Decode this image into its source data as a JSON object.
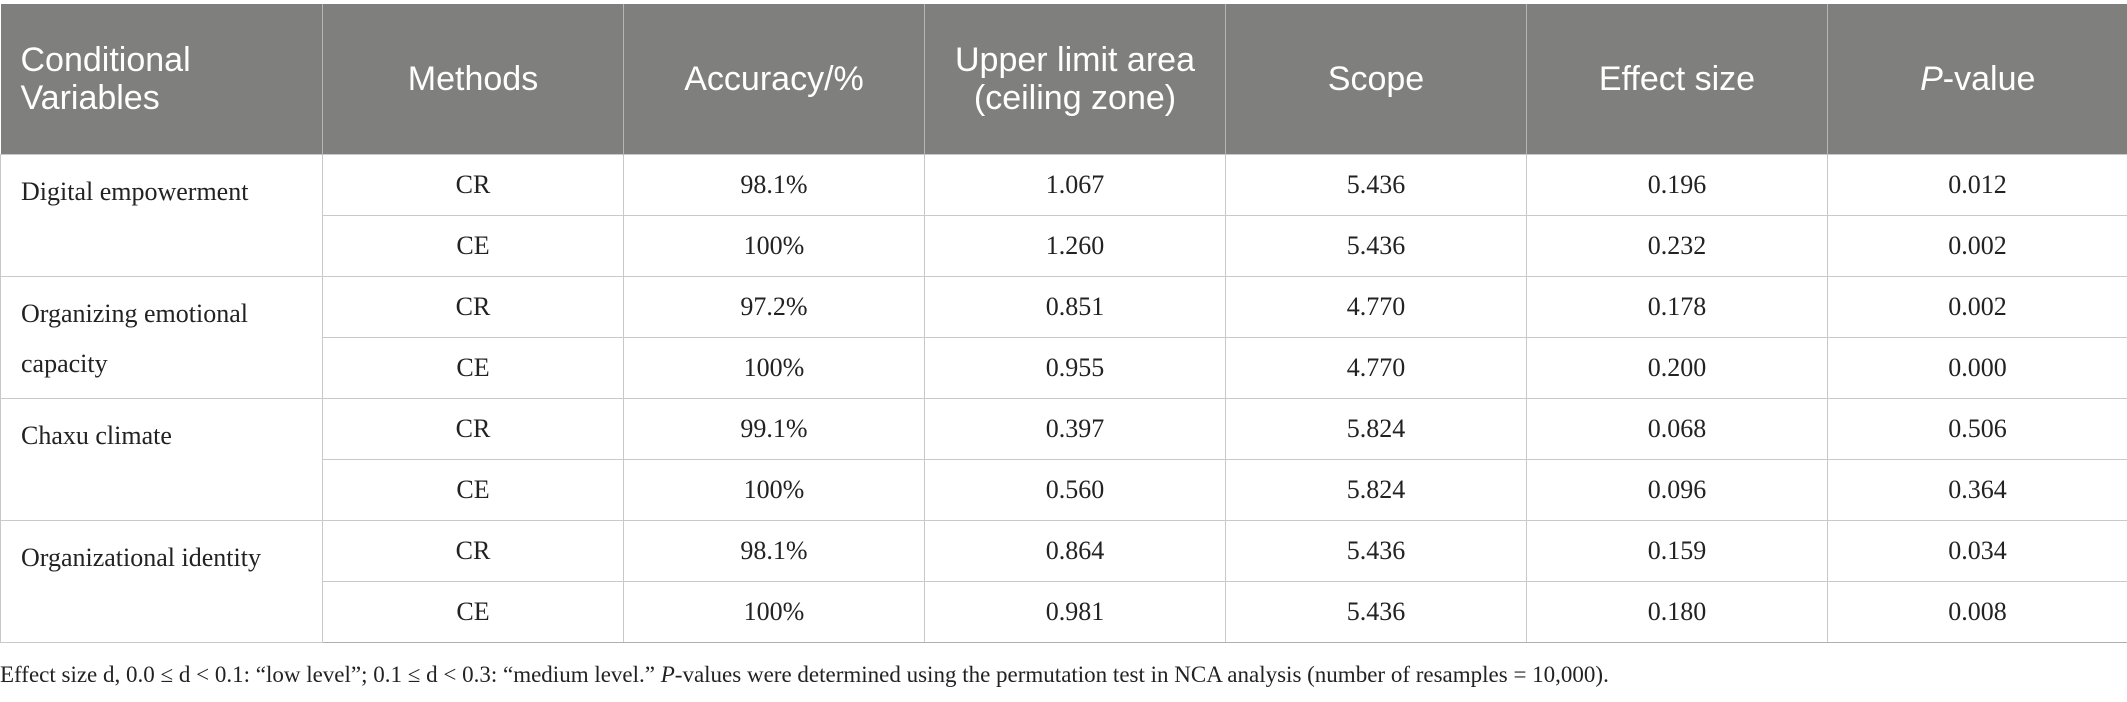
{
  "table": {
    "headers": {
      "variables": "Conditional Variables",
      "methods": "Methods",
      "accuracy": "Accuracy/%",
      "ceiling": "Upper limit area (ceiling zone)",
      "scope": "Scope",
      "effect": "Effect size",
      "p_prefix": "P",
      "p_suffix": "-value"
    },
    "groups": [
      {
        "variable": "Digital empowerment",
        "rows": [
          {
            "method": "CR",
            "accuracy": "98.1%",
            "ceiling": "1.067",
            "scope": "5.436",
            "effect": "0.196",
            "p": "0.012"
          },
          {
            "method": "CE",
            "accuracy": "100%",
            "ceiling": "1.260",
            "scope": "5.436",
            "effect": "0.232",
            "p": "0.002"
          }
        ]
      },
      {
        "variable": "Organizing emotional capacity",
        "rows": [
          {
            "method": "CR",
            "accuracy": "97.2%",
            "ceiling": "0.851",
            "scope": "4.770",
            "effect": "0.178",
            "p": "0.002"
          },
          {
            "method": "CE",
            "accuracy": "100%",
            "ceiling": "0.955",
            "scope": "4.770",
            "effect": "0.200",
            "p": "0.000"
          }
        ]
      },
      {
        "variable": "Chaxu climate",
        "rows": [
          {
            "method": "CR",
            "accuracy": "99.1%",
            "ceiling": "0.397",
            "scope": "5.824",
            "effect": "0.068",
            "p": "0.506"
          },
          {
            "method": "CE",
            "accuracy": "100%",
            "ceiling": "0.560",
            "scope": "5.824",
            "effect": "0.096",
            "p": "0.364"
          }
        ]
      },
      {
        "variable": "Organizational identity",
        "rows": [
          {
            "method": "CR",
            "accuracy": "98.1%",
            "ceiling": "0.864",
            "scope": "5.436",
            "effect": "0.159",
            "p": "0.034"
          },
          {
            "method": "CE",
            "accuracy": "100%",
            "ceiling": "0.981",
            "scope": "5.436",
            "effect": "0.180",
            "p": "0.008"
          }
        ]
      }
    ]
  },
  "note": {
    "part1": "Effect size d, 0.0 ≤ d < 0.1: “low level”; 0.1 ≤ d < 0.3: “medium level.” ",
    "p_italic": "P",
    "part2": "-values were determined using the permutation test in NCA analysis (number of resamples = 10,000)."
  },
  "colors": {
    "header_bg": "#7f7f7d",
    "header_text": "#ffffff",
    "grid": "#c9c9c9"
  }
}
